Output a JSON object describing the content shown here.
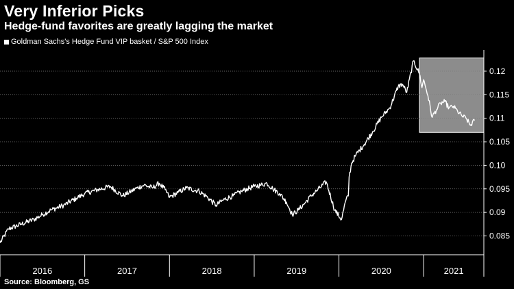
{
  "header": {
    "title": "Very Inferior Picks",
    "subtitle": "Hedge-fund favorites are greatly lagging the market"
  },
  "legend": {
    "label": "Goldman Sachs's Hedge Fund VIP basket / S&P 500 Index"
  },
  "source": "Source: Bloomberg, GS",
  "colors": {
    "background": "#000000",
    "line": "#ffffff",
    "highlight": "#8c8c8c"
  },
  "chart_data": {
    "type": "line",
    "title": "Very Inferior Picks",
    "subtitle": "Hedge-fund favorites are greatly lagging the market",
    "series": [
      {
        "name": "Goldman Sachs's Hedge Fund VIP basket / S&P 500 Index",
        "x": [
          2016.0,
          2016.1,
          2016.25,
          2016.4,
          2016.5,
          2016.6,
          2016.75,
          2016.9,
          2017.0,
          2017.15,
          2017.3,
          2017.45,
          2017.55,
          2017.62,
          2017.7,
          2017.8,
          2017.88,
          2017.95,
          2018.0,
          2018.1,
          2018.2,
          2018.35,
          2018.45,
          2018.55,
          2018.65,
          2018.75,
          2018.85,
          2018.92,
          2019.0,
          2019.08,
          2019.15,
          2019.22,
          2019.3,
          2019.38,
          2019.45,
          2019.52,
          2019.6,
          2019.67,
          2019.75,
          2019.85,
          2019.95,
          2020.03,
          2020.08,
          2020.11,
          2020.12,
          2020.15,
          2020.2,
          2020.3,
          2020.4,
          2020.5,
          2020.6,
          2020.7,
          2020.75,
          2020.8,
          2020.88,
          2020.95,
          2020.98,
          2021.0,
          2021.05,
          2021.1,
          2021.15,
          2021.2,
          2021.25,
          2021.3,
          2021.35,
          2021.4,
          2021.45,
          2021.5,
          2021.55,
          2021.6
        ],
        "values": [
          0.0835,
          0.0865,
          0.0875,
          0.0885,
          0.0895,
          0.0905,
          0.0915,
          0.093,
          0.094,
          0.0948,
          0.0955,
          0.0935,
          0.0945,
          0.0952,
          0.0958,
          0.0952,
          0.0962,
          0.0948,
          0.0932,
          0.0942,
          0.0952,
          0.0945,
          0.0932,
          0.0915,
          0.0928,
          0.0935,
          0.0945,
          0.095,
          0.0955,
          0.0958,
          0.0962,
          0.095,
          0.094,
          0.0922,
          0.0895,
          0.0905,
          0.092,
          0.0935,
          0.0948,
          0.0965,
          0.0905,
          0.0885,
          0.0925,
          0.0935,
          0.0975,
          0.1005,
          0.1022,
          0.1045,
          0.1072,
          0.1102,
          0.1122,
          0.1168,
          0.1172,
          0.1155,
          0.1222,
          0.1195,
          0.1165,
          0.1182,
          0.1148,
          0.1102,
          0.1118,
          0.1132,
          0.1135,
          0.1122,
          0.1125,
          0.1115,
          0.1105,
          0.11,
          0.1085,
          0.1095
        ]
      }
    ],
    "xlabel": "",
    "ylabel": "",
    "xlim": [
      2016.0,
      2021.71
    ],
    "ylim": [
      0.081,
      0.1245
    ],
    "x_tick_labels": [
      "2016",
      "2017",
      "2018",
      "2019",
      "2020",
      "2021"
    ],
    "y_ticks": [
      0.085,
      0.09,
      0.095,
      0.1,
      0.105,
      0.11,
      0.115,
      0.12
    ],
    "y_tick_labels": [
      "0.085",
      "0.09",
      "0.095",
      "0.10",
      "0.105",
      "0.11",
      "0.115",
      "0.12"
    ],
    "highlight_range": {
      "x": [
        2020.95,
        2021.71
      ],
      "y": [
        0.107,
        0.1228
      ]
    },
    "grid": true,
    "legend_position": "top-left"
  }
}
